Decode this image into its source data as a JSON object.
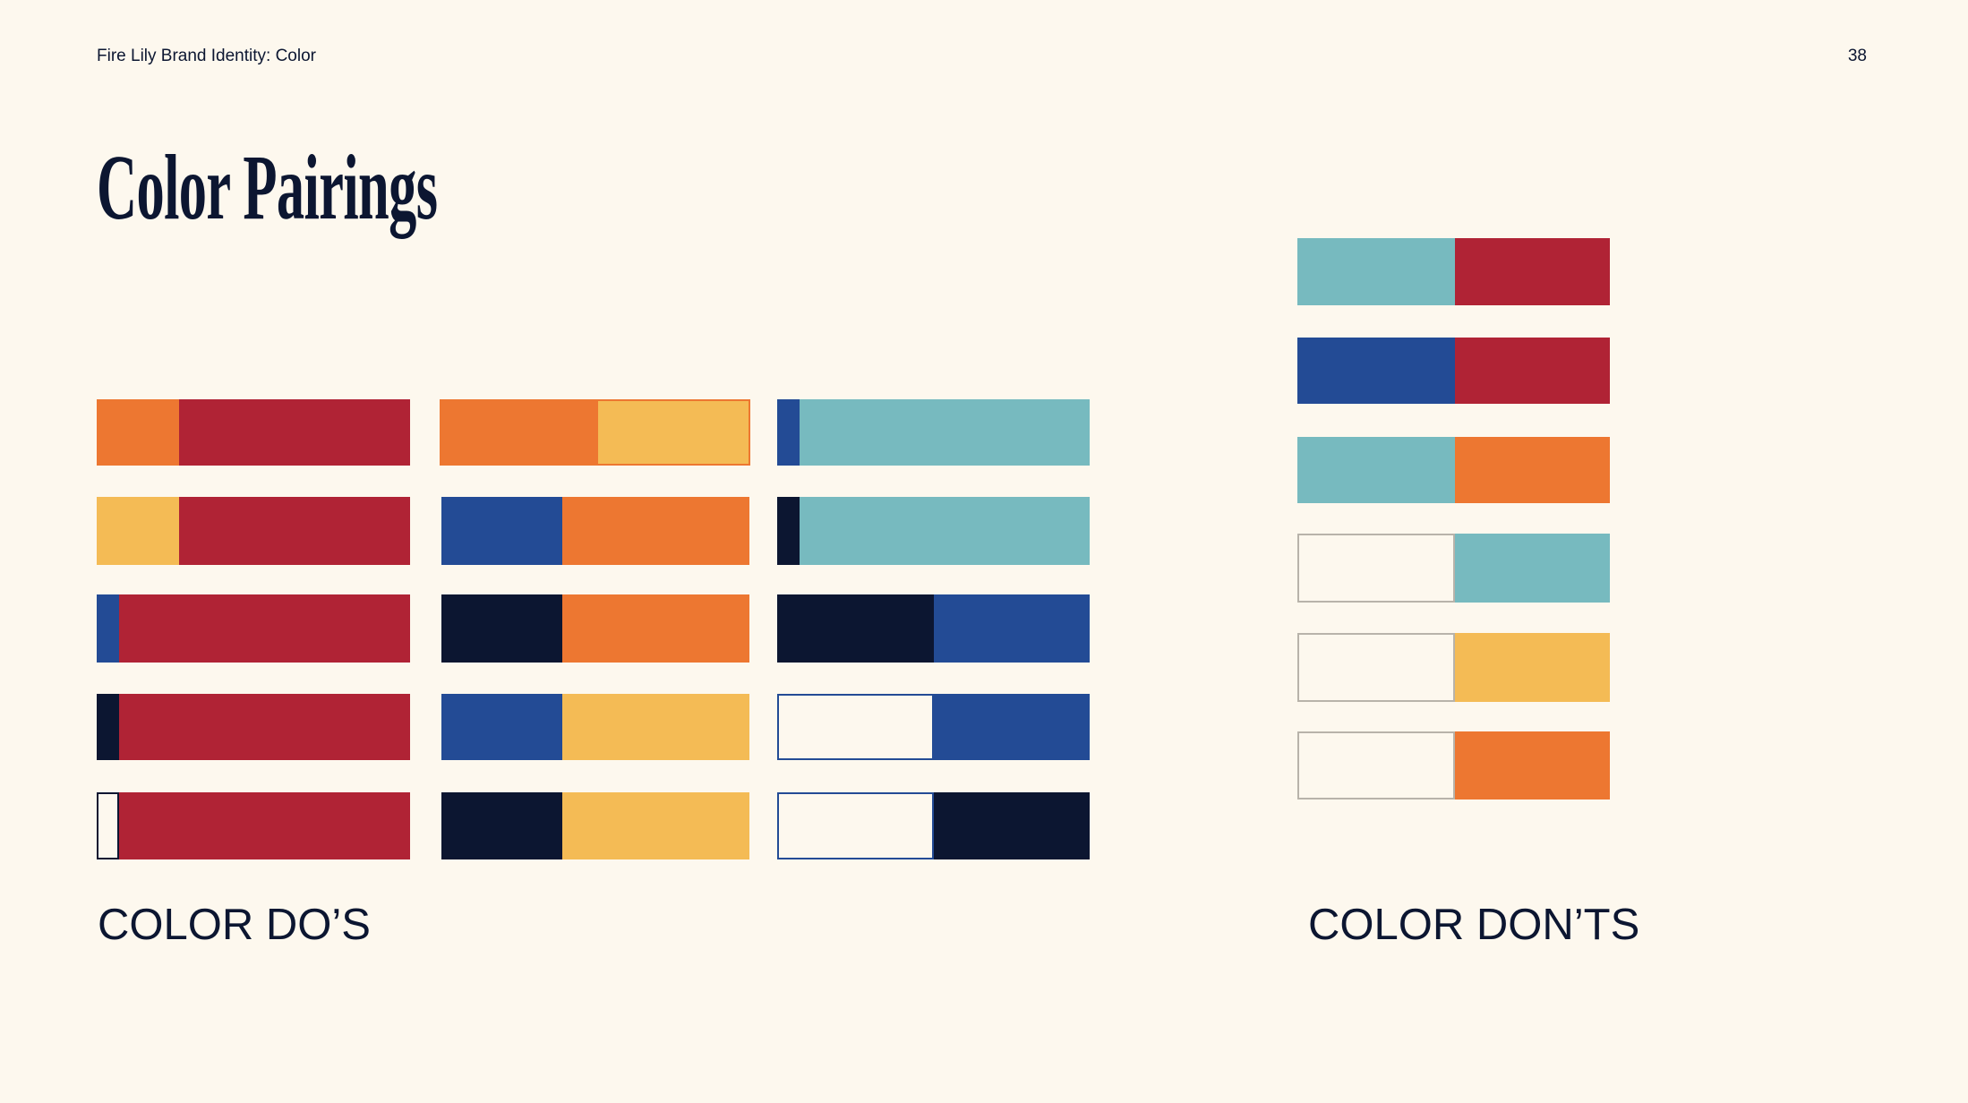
{
  "header": {
    "title": "Fire Lily Brand Identity: Color",
    "page_number": "38"
  },
  "title": "Color Pairings",
  "sections": {
    "dos": {
      "label": "COLOR DO’S"
    },
    "donts": {
      "label": "COLOR DON’TS"
    }
  }
}
